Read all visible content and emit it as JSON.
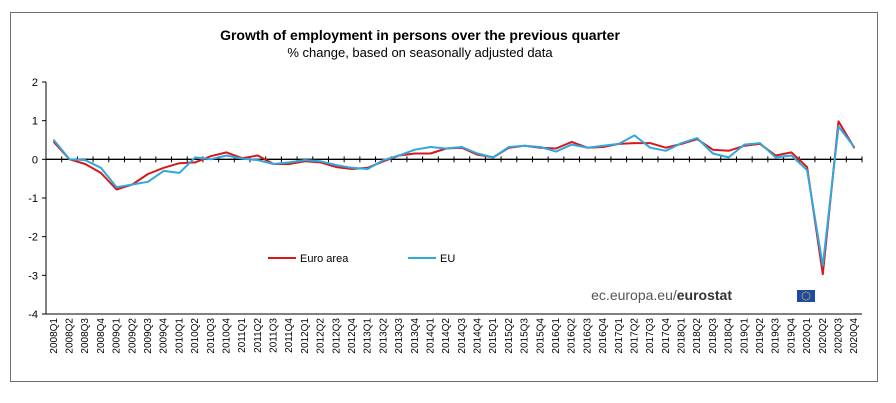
{
  "chart_data": {
    "type": "line",
    "title": "Growth of employment in persons over the previous quarter",
    "subtitle": "% change, based on seasonally adjusted data",
    "xlabel": "",
    "ylabel": "",
    "ylim": [
      -4,
      2
    ],
    "yticks": [
      -4,
      -3,
      -2,
      -1,
      0,
      1,
      2
    ],
    "grid": false,
    "legend_position": "lower-center",
    "categories": [
      "2008Q1",
      "2008Q2",
      "2008Q3",
      "2008Q4",
      "2009Q1",
      "2009Q2",
      "2009Q3",
      "2009Q4",
      "2010Q1",
      "2010Q2",
      "2010Q3",
      "2010Q4",
      "2011Q1",
      "2011Q2",
      "2011Q3",
      "2011Q4",
      "2012Q1",
      "2012Q2",
      "2012Q3",
      "2012Q4",
      "2013Q1",
      "2013Q2",
      "2013Q3",
      "2013Q4",
      "2014Q1",
      "2014Q2",
      "2014Q3",
      "2014Q4",
      "2015Q1",
      "2015Q2",
      "2015Q3",
      "2015Q4",
      "2016Q1",
      "2016Q2",
      "2016Q3",
      "2016Q4",
      "2017Q1",
      "2017Q2",
      "2017Q3",
      "2017Q4",
      "2018Q1",
      "2018Q2",
      "2018Q3",
      "2018Q4",
      "2019Q1",
      "2019Q2",
      "2019Q3",
      "2019Q4",
      "2020Q1",
      "2020Q2",
      "2020Q3",
      "2020Q4"
    ],
    "series": [
      {
        "name": "Euro area",
        "color": "#d7191c",
        "values": [
          0.45,
          0.0,
          -0.12,
          -0.35,
          -0.78,
          -0.65,
          -0.38,
          -0.22,
          -0.1,
          -0.08,
          0.08,
          0.18,
          0.03,
          0.1,
          -0.12,
          -0.12,
          -0.05,
          -0.08,
          -0.2,
          -0.25,
          -0.22,
          -0.05,
          0.1,
          0.15,
          0.15,
          0.28,
          0.3,
          0.12,
          0.05,
          0.3,
          0.35,
          0.3,
          0.28,
          0.45,
          0.3,
          0.32,
          0.4,
          0.42,
          0.42,
          0.3,
          0.4,
          0.52,
          0.25,
          0.22,
          0.35,
          0.4,
          0.1,
          0.18,
          -0.2,
          -2.97,
          0.98,
          0.3
        ]
      },
      {
        "name": "EU",
        "color": "#2fa8de",
        "values": [
          0.5,
          0.0,
          -0.02,
          -0.22,
          -0.72,
          -0.65,
          -0.58,
          -0.3,
          -0.35,
          0.05,
          0.0,
          0.1,
          0.02,
          -0.02,
          -0.12,
          -0.08,
          -0.02,
          -0.05,
          -0.15,
          -0.22,
          -0.25,
          -0.02,
          0.1,
          0.25,
          0.32,
          0.28,
          0.32,
          0.15,
          0.05,
          0.32,
          0.35,
          0.32,
          0.2,
          0.38,
          0.3,
          0.35,
          0.4,
          0.62,
          0.3,
          0.22,
          0.42,
          0.55,
          0.15,
          0.05,
          0.38,
          0.42,
          0.05,
          0.1,
          -0.28,
          -2.75,
          0.85,
          0.32
        ]
      }
    ]
  },
  "legend": {
    "euro_area": "Euro area",
    "eu": "EU"
  },
  "branding": {
    "site": "ec.europa.eu/",
    "name": "eurostat"
  }
}
